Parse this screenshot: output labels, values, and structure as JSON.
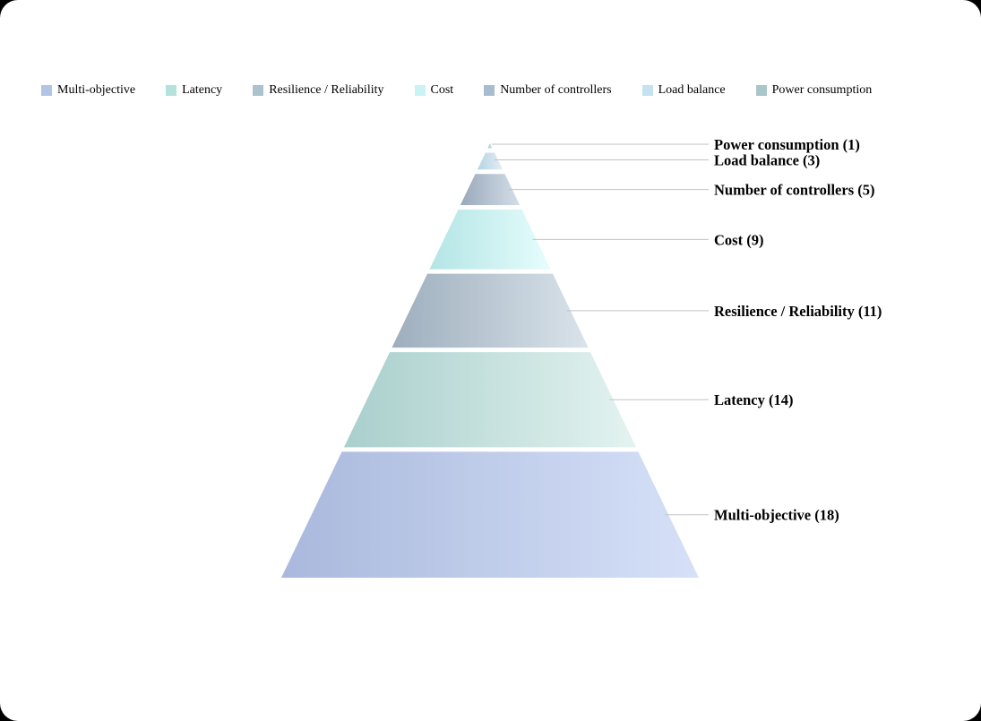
{
  "chart_data": {
    "type": "pyramid",
    "categories": [
      "Multi-objective",
      "Latency",
      "Resilience / Reliability",
      "Cost",
      "Number of controllers",
      "Load balance",
      "Power  consumption"
    ],
    "values": [
      18,
      14,
      11,
      9,
      5,
      3,
      1
    ],
    "data_labels": [
      "Multi-objective (18)",
      "Latency (14)",
      "Resilience / Reliability (11)",
      "Cost (9)",
      "Number of controllers (5)",
      "Load balance (3)",
      "Power  consumption (1)"
    ],
    "legend": {
      "position": "top",
      "entries": [
        "Multi-objective",
        "Latency",
        "Resilience / Reliability",
        "Cost",
        "Number of controllers",
        "Load balance",
        "Power  consumption"
      ]
    },
    "colors": [
      [
        "#a9b8dc",
        "#d6e1f8"
      ],
      [
        "#a9cfcc",
        "#e3f3f0"
      ],
      [
        "#9eaebd",
        "#d9e3ea"
      ],
      [
        "#b4e4e4",
        "#e6fdfd"
      ],
      [
        "#9aa8ba",
        "#d3dfe8"
      ],
      [
        "#b6d3e3",
        "#e2eef6"
      ],
      [
        "#a6c4cc",
        "#d8e8ec"
      ]
    ],
    "swatch_colors": [
      "#b3c3e6",
      "#b5e2dc",
      "#adc2cd",
      "#c9f3f5",
      "#a8bccf",
      "#c5e2ef",
      "#a9c6cb"
    ]
  }
}
